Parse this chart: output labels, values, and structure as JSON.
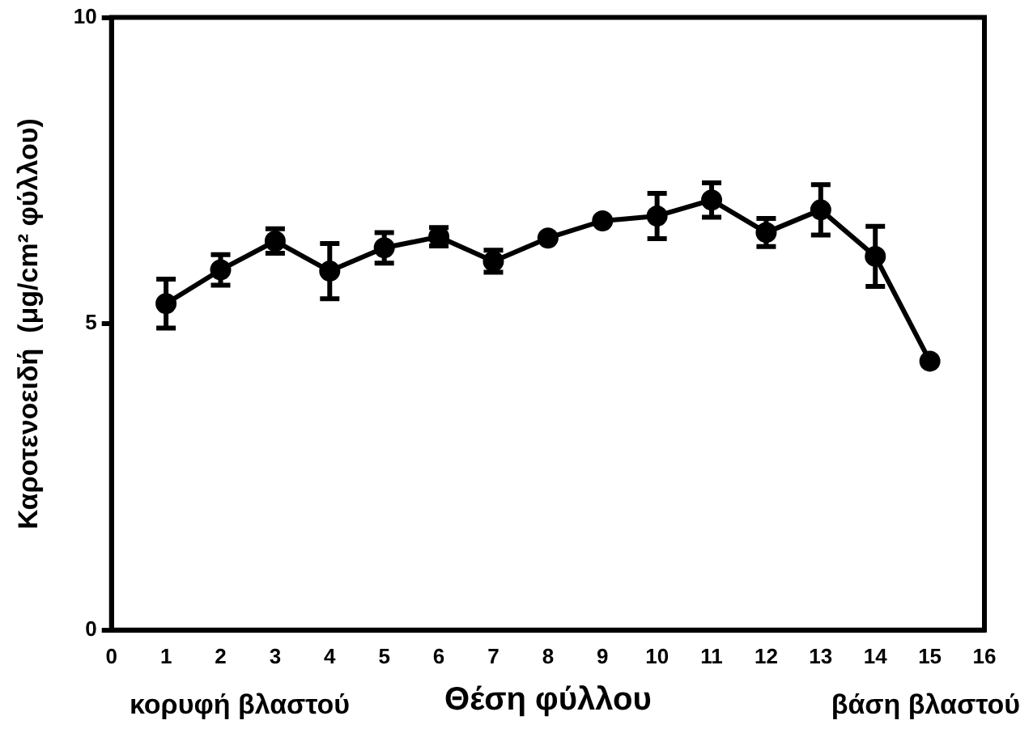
{
  "chart_data": {
    "type": "line",
    "xlabel": "Θέση φύλλου",
    "ylabel": "Καροτενοειδή  (μg/cm² φύλλου)",
    "annotations": [
      "κορυφή βλαστού",
      "βάση βλαστού"
    ],
    "x": [
      1,
      2,
      3,
      4,
      5,
      6,
      7,
      8,
      9,
      10,
      11,
      12,
      13,
      14,
      15
    ],
    "series": [
      {
        "color": "#000000",
        "values": [
          5.33,
          5.88,
          6.35,
          5.86,
          6.24,
          6.42,
          6.02,
          6.4,
          6.68,
          6.76,
          7.02,
          6.49,
          6.86,
          6.1,
          4.39
        ],
        "errors": [
          0.4,
          0.25,
          0.2,
          0.45,
          0.25,
          0.15,
          0.18,
          null,
          null,
          0.37,
          0.28,
          0.23,
          0.41,
          0.49,
          null
        ]
      }
    ],
    "xlim": [
      0,
      16
    ],
    "xticks": [
      0,
      1,
      2,
      3,
      4,
      5,
      6,
      7,
      8,
      9,
      10,
      11,
      12,
      13,
      14,
      15,
      16
    ],
    "ylim": [
      0,
      10
    ],
    "yticks": [
      0,
      5,
      10
    ],
    "grid": false,
    "legend": false,
    "marker": "circle",
    "line_style": "solid"
  }
}
